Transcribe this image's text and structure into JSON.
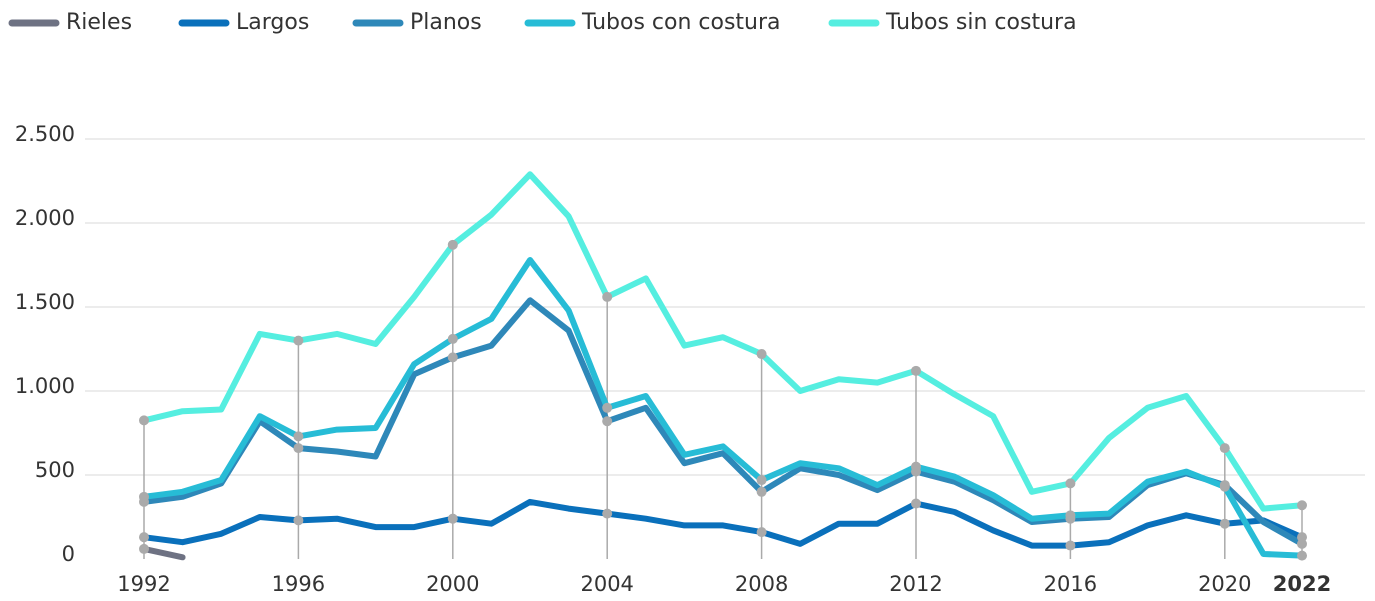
{
  "chart_data": {
    "type": "line",
    "categories": [
      "1992",
      null,
      null,
      null,
      "1996",
      null,
      null,
      null,
      "2000",
      null,
      null,
      null,
      "2004",
      null,
      null,
      null,
      "2008",
      null,
      null,
      null,
      "2012",
      null,
      null,
      null,
      "2016",
      null,
      null,
      null,
      "2020",
      null,
      "2022"
    ],
    "series": [
      {
        "name": "Rieles",
        "color": "#6e7283",
        "values": [
          60,
          10,
          null,
          null,
          null,
          null,
          null,
          null,
          null,
          null,
          null,
          null,
          null,
          null,
          null,
          null,
          null,
          null,
          null,
          null,
          null,
          null,
          null,
          null,
          null,
          null,
          null,
          null,
          null,
          null,
          null
        ]
      },
      {
        "name": "Largos",
        "color": "#0a70bb",
        "values": [
          130,
          100,
          150,
          250,
          230,
          240,
          190,
          190,
          240,
          210,
          340,
          300,
          270,
          240,
          200,
          200,
          160,
          90,
          210,
          210,
          330,
          280,
          170,
          80,
          80,
          100,
          200,
          260,
          210,
          230,
          130
        ]
      },
      {
        "name": "Planos",
        "color": "#2e88b9",
        "values": [
          340,
          370,
          450,
          820,
          660,
          640,
          610,
          1100,
          1200,
          1270,
          1540,
          1360,
          820,
          900,
          570,
          630,
          400,
          540,
          500,
          410,
          520,
          460,
          350,
          220,
          240,
          250,
          440,
          510,
          440,
          220,
          90
        ]
      },
      {
        "name": "Tubos con costura",
        "color": "#27bcd6",
        "values": [
          370,
          400,
          470,
          850,
          730,
          770,
          780,
          1160,
          1310,
          1430,
          1780,
          1480,
          900,
          970,
          620,
          670,
          470,
          570,
          540,
          440,
          550,
          490,
          380,
          240,
          260,
          270,
          460,
          520,
          430,
          30,
          20
        ]
      },
      {
        "name": "Tubos sin costura",
        "color": "#55eee0",
        "values": [
          825,
          880,
          890,
          1340,
          1300,
          1340,
          1280,
          1560,
          1870,
          2050,
          2290,
          2040,
          1560,
          1670,
          1270,
          1320,
          1220,
          1000,
          1070,
          1050,
          1120,
          980,
          850,
          400,
          450,
          720,
          900,
          970,
          660,
          300,
          320
        ]
      }
    ],
    "ylim": [
      0,
      2500
    ],
    "yticks": [
      0,
      500,
      {
        "value": 1000,
        "label": "1.000"
      },
      {
        "value": 1500,
        "label": "1.500"
      },
      {
        "value": 2000,
        "label": "2.000"
      },
      {
        "value": 2500,
        "label": "2.500"
      }
    ],
    "grid": true
  }
}
